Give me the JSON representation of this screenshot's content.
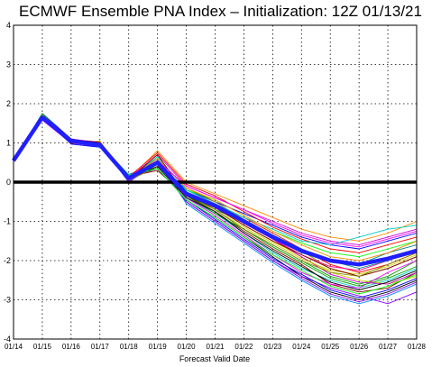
{
  "chart_data": {
    "type": "line",
    "title": "ECMWF Ensemble PNA Index – Initialization: 12Z 01/13/21",
    "xlabel": "Forecast Valid Date",
    "ylabel": "",
    "categories": [
      "01/14",
      "01/15",
      "01/16",
      "01/17",
      "01/18",
      "01/19",
      "01/20",
      "01/21",
      "01/22",
      "01/23",
      "01/24",
      "01/25",
      "01/26",
      "01/27",
      "01/28"
    ],
    "ylim": [
      -4,
      4
    ],
    "yticks": [
      -4,
      -3,
      -2,
      -1,
      0,
      1,
      2,
      3,
      4
    ],
    "grid": true,
    "zero_line": {
      "y": 0,
      "color": "#000000"
    },
    "ensemble_mean": {
      "color": "#1f1fff",
      "values": [
        0.55,
        1.65,
        1.05,
        0.95,
        0.1,
        0.5,
        -0.3,
        -0.6,
        -1.0,
        -1.4,
        -1.75,
        -2.0,
        -2.1,
        -1.95,
        -1.75
      ]
    },
    "member_colors": [
      "#ff0000",
      "#00a000",
      "#0000ff",
      "#00cccc",
      "#cc00cc",
      "#cccc00",
      "#000000",
      "#ff8800",
      "#8800ff",
      "#008888",
      "#880000",
      "#00ff00",
      "#ff00ff",
      "#888800",
      "#0088ff",
      "#ff0088"
    ],
    "series": [
      {
        "values": [
          0.55,
          1.7,
          1.05,
          0.98,
          0.05,
          0.4,
          -0.25,
          -0.55,
          -0.9,
          -1.3,
          -1.7,
          -2.1,
          -2.3,
          -2.1,
          -1.8
        ]
      },
      {
        "values": [
          0.55,
          1.6,
          1.0,
          0.9,
          0.15,
          0.6,
          -0.35,
          -0.7,
          -1.2,
          -1.6,
          -2.0,
          -2.4,
          -2.6,
          -2.4,
          -2.0
        ]
      },
      {
        "values": [
          0.55,
          1.75,
          1.1,
          1.0,
          0.0,
          0.5,
          -0.2,
          -0.5,
          -0.8,
          -1.1,
          -1.4,
          -1.6,
          -1.7,
          -1.5,
          -1.3
        ]
      },
      {
        "values": [
          0.55,
          1.65,
          1.0,
          0.95,
          0.2,
          0.45,
          -0.4,
          -0.8,
          -1.3,
          -1.8,
          -2.2,
          -2.5,
          -2.7,
          -2.5,
          -2.2
        ]
      },
      {
        "values": [
          0.55,
          1.6,
          1.05,
          0.9,
          0.1,
          0.7,
          -0.1,
          -0.4,
          -0.7,
          -1.0,
          -1.3,
          -1.5,
          -1.6,
          -1.4,
          -1.2
        ]
      },
      {
        "values": [
          0.55,
          1.7,
          0.98,
          1.05,
          0.05,
          0.55,
          -0.3,
          -0.6,
          -1.1,
          -1.5,
          -1.9,
          -2.3,
          -2.5,
          -2.6,
          -2.4
        ]
      },
      {
        "values": [
          0.55,
          1.65,
          1.02,
          0.92,
          0.12,
          0.35,
          -0.45,
          -0.9,
          -1.4,
          -1.9,
          -2.4,
          -2.8,
          -3.0,
          -2.8,
          -2.5
        ]
      },
      {
        "values": [
          0.55,
          1.62,
          1.08,
          0.97,
          0.08,
          0.8,
          0.0,
          -0.3,
          -0.6,
          -0.9,
          -1.2,
          -1.4,
          -1.5,
          -1.3,
          -1.0
        ]
      },
      {
        "values": [
          0.55,
          1.68,
          1.0,
          0.9,
          0.18,
          0.5,
          -0.5,
          -1.0,
          -1.5,
          -2.0,
          -2.4,
          -2.7,
          -2.9,
          -3.1,
          -2.8
        ]
      },
      {
        "values": [
          0.55,
          1.66,
          1.04,
          0.96,
          0.02,
          0.45,
          -0.25,
          -0.7,
          -1.0,
          -1.4,
          -1.8,
          -2.0,
          -2.1,
          -1.8,
          -1.6
        ]
      },
      {
        "values": [
          0.55,
          1.64,
          1.06,
          1.0,
          0.14,
          0.3,
          -0.35,
          -0.75,
          -1.25,
          -1.7,
          -2.1,
          -2.6,
          -2.8,
          -2.7,
          -2.3
        ]
      },
      {
        "values": [
          0.55,
          1.72,
          1.03,
          0.93,
          0.06,
          0.65,
          -0.2,
          -0.45,
          -0.85,
          -1.25,
          -1.55,
          -1.8,
          -1.9,
          -1.7,
          -1.5
        ]
      },
      {
        "values": [
          0.55,
          1.58,
          0.99,
          0.94,
          0.16,
          0.55,
          -0.4,
          -0.85,
          -1.35,
          -1.85,
          -2.3,
          -2.6,
          -2.7,
          -2.3,
          -2.0
        ]
      },
      {
        "values": [
          0.55,
          1.67,
          1.07,
          0.99,
          0.04,
          0.4,
          -0.15,
          -0.5,
          -0.95,
          -1.35,
          -1.75,
          -2.2,
          -2.4,
          -2.2,
          -1.9
        ]
      },
      {
        "values": [
          0.55,
          1.63,
          1.01,
          0.91,
          0.11,
          0.6,
          -0.55,
          -1.05,
          -1.55,
          -2.05,
          -2.5,
          -2.9,
          -3.1,
          -2.9,
          -2.6
        ]
      },
      {
        "values": [
          0.55,
          1.69,
          1.09,
          1.02,
          0.09,
          0.45,
          -0.3,
          -0.65,
          -1.05,
          -1.45,
          -1.85,
          -2.15,
          -2.25,
          -2.0,
          -1.7
        ]
      },
      {
        "values": [
          0.55,
          1.61,
          1.02,
          0.95,
          0.13,
          0.75,
          -0.05,
          -0.35,
          -0.75,
          -1.15,
          -1.45,
          -1.7,
          -1.8,
          -1.6,
          -1.4
        ]
      },
      {
        "values": [
          0.55,
          1.74,
          1.05,
          0.97,
          0.03,
          0.5,
          -0.35,
          -0.8,
          -1.2,
          -1.65,
          -2.05,
          -2.45,
          -2.65,
          -2.45,
          -2.15
        ]
      },
      {
        "values": [
          0.55,
          1.65,
          0.97,
          0.89,
          0.17,
          0.35,
          -0.45,
          -0.95,
          -1.45,
          -1.95,
          -2.35,
          -2.75,
          -2.95,
          -2.75,
          -2.45
        ]
      },
      {
        "values": [
          0.55,
          1.66,
          1.04,
          0.96,
          0.07,
          0.65,
          -0.2,
          -0.55,
          -0.9,
          -1.2,
          -1.5,
          -1.6,
          -1.4,
          -1.2,
          -1.1
        ]
      },
      {
        "values": [
          0.55,
          1.59,
          1.06,
          0.98,
          0.15,
          0.45,
          -0.3,
          -0.6,
          -1.0,
          -1.45,
          -1.9,
          -2.35,
          -2.55,
          -2.6,
          -2.3
        ]
      },
      {
        "values": [
          0.55,
          1.71,
          1.0,
          0.93,
          0.05,
          0.55,
          -0.25,
          -0.7,
          -1.15,
          -1.55,
          -1.95,
          -2.25,
          -2.35,
          -2.15,
          -1.85
        ]
      },
      {
        "values": [
          0.55,
          1.63,
          1.08,
          1.01,
          0.12,
          0.4,
          -0.4,
          -0.75,
          -1.3,
          -1.75,
          -2.15,
          -2.55,
          -2.75,
          -2.55,
          -2.25
        ]
      },
      {
        "values": [
          0.55,
          1.67,
          1.03,
          0.92,
          0.1,
          0.6,
          -0.15,
          -0.45,
          -0.85,
          -1.25,
          -1.6,
          -1.9,
          -2.0,
          -1.8,
          -1.5
        ]
      },
      {
        "values": [
          0.55,
          1.64,
          1.01,
          0.94,
          0.08,
          0.5,
          -0.5,
          -1.0,
          -1.5,
          -2.0,
          -2.45,
          -2.85,
          -3.05,
          -2.85,
          -2.55
        ]
      },
      {
        "values": [
          0.55,
          1.68,
          1.07,
          0.99,
          0.14,
          0.45,
          -0.25,
          -0.55,
          -0.95,
          -1.35,
          -1.7,
          -2.0,
          -2.2,
          -2.0,
          -1.75
        ]
      },
      {
        "values": [
          0.55,
          1.62,
          0.99,
          0.97,
          0.06,
          0.7,
          -0.35,
          -0.65,
          -1.1,
          -1.5,
          -1.85,
          -2.2,
          -2.4,
          -2.2,
          -1.9
        ]
      },
      {
        "values": [
          0.55,
          1.7,
          1.05,
          0.9,
          0.18,
          0.35,
          -0.45,
          -0.9,
          -1.4,
          -1.85,
          -2.25,
          -2.65,
          -2.85,
          -2.65,
          -2.35
        ]
      },
      {
        "values": [
          0.55,
          1.66,
          1.02,
          1.0,
          0.02,
          0.55,
          -0.1,
          -0.4,
          -0.7,
          -1.05,
          -1.35,
          -1.55,
          -1.65,
          -1.45,
          -1.25
        ]
      },
      {
        "values": [
          0.55,
          1.65,
          1.06,
          0.95,
          0.11,
          0.5,
          -0.3,
          -0.7,
          -1.2,
          -1.6,
          -2.0,
          -2.3,
          -2.4,
          -2.1,
          -1.8
        ]
      }
    ]
  }
}
